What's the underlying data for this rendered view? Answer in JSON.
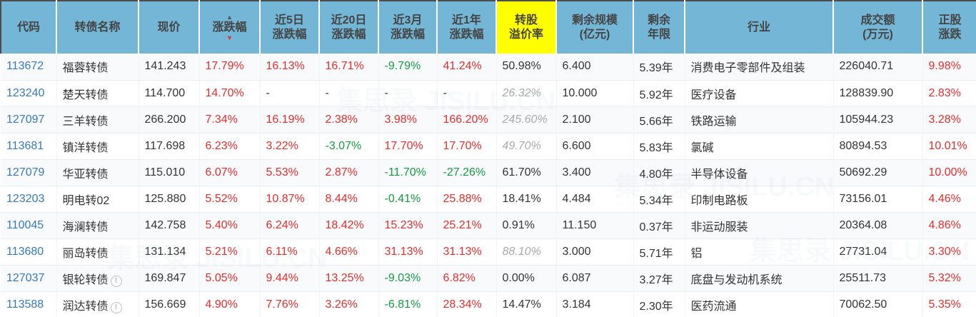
{
  "colors": {
    "header_bg": "#74b6d6",
    "header_text": "#444444",
    "highlight_bg": "#ffff00",
    "code_link": "#3579b9",
    "up_red": "#e62c2c",
    "down_green": "#149a43",
    "neutral": "#333333",
    "estimate_gray": "#aaaaaa",
    "sort_asc_inactive": "#555555",
    "sort_desc_active": "#e62c2c"
  },
  "watermark": {
    "text": "集思录",
    "subtext": "JISILU.CN"
  },
  "table": {
    "columns": [
      {
        "key": "code",
        "label": "代码",
        "type": "code"
      },
      {
        "key": "name",
        "label": "转债名称",
        "type": "name"
      },
      {
        "key": "price",
        "label": "现价",
        "type": "plain"
      },
      {
        "key": "change",
        "label": "涨跌幅",
        "type": "pct",
        "sorted": "desc"
      },
      {
        "key": "chg_5d",
        "label": "近5日\n涨跌幅",
        "type": "pct"
      },
      {
        "key": "chg_20d",
        "label": "近20日\n涨跌幅",
        "type": "pct"
      },
      {
        "key": "chg_3m",
        "label": "近3月\n涨跌幅",
        "type": "pct"
      },
      {
        "key": "chg_1y",
        "label": "近1年\n涨跌幅",
        "type": "pct"
      },
      {
        "key": "premium",
        "label": "转股\n溢价率",
        "type": "premium",
        "highlight": true
      },
      {
        "key": "size",
        "label": "剩余规模\n(亿元)",
        "type": "plain"
      },
      {
        "key": "years",
        "label": "剩余\n年限",
        "type": "plain"
      },
      {
        "key": "industry",
        "label": "行业",
        "type": "plain"
      },
      {
        "key": "turnover",
        "label": "成交额\n(万元)",
        "type": "plain"
      },
      {
        "key": "stock_change",
        "label": "正股\n涨跌",
        "type": "pct"
      }
    ],
    "rows": [
      {
        "code": "113672",
        "name": "福蓉转债",
        "notice": false,
        "price": "141.243",
        "change": "17.79%",
        "chg_5d": "16.13%",
        "chg_20d": "16.71%",
        "chg_3m": "-9.79%",
        "chg_1y": "41.24%",
        "premium": "50.98%",
        "premium_estimated": false,
        "size": "6.400",
        "years": "5.39年",
        "industry": "消费电子零部件及组装",
        "turnover": "226040.71",
        "stock_change": "9.98%"
      },
      {
        "code": "123240",
        "name": "楚天转债",
        "notice": false,
        "price": "114.700",
        "change": "14.70%",
        "chg_5d": "-",
        "chg_20d": "-",
        "chg_3m": "-",
        "chg_1y": "-",
        "premium": "26.32%",
        "premium_estimated": true,
        "size": "10.000",
        "years": "5.92年",
        "industry": "医疗设备",
        "turnover": "128839.90",
        "stock_change": "2.83%"
      },
      {
        "code": "127097",
        "name": "三羊转债",
        "notice": false,
        "price": "266.200",
        "change": "7.34%",
        "chg_5d": "16.19%",
        "chg_20d": "2.38%",
        "chg_3m": "3.98%",
        "chg_1y": "166.20%",
        "premium": "245.60%",
        "premium_estimated": true,
        "size": "2.100",
        "years": "5.66年",
        "industry": "铁路运输",
        "turnover": "105944.23",
        "stock_change": "3.28%"
      },
      {
        "code": "113681",
        "name": "镇洋转债",
        "notice": false,
        "price": "117.698",
        "change": "6.23%",
        "chg_5d": "3.22%",
        "chg_20d": "-3.07%",
        "chg_3m": "17.70%",
        "chg_1y": "17.70%",
        "premium": "49.70%",
        "premium_estimated": true,
        "size": "6.600",
        "years": "5.83年",
        "industry": "氯碱",
        "turnover": "80894.53",
        "stock_change": "10.01%"
      },
      {
        "code": "127079",
        "name": "华亚转债",
        "notice": false,
        "price": "115.010",
        "change": "6.07%",
        "chg_5d": "5.53%",
        "chg_20d": "2.87%",
        "chg_3m": "-11.70%",
        "chg_1y": "-27.26%",
        "premium": "61.70%",
        "premium_estimated": false,
        "size": "3.400",
        "years": "4.80年",
        "industry": "半导体设备",
        "turnover": "50692.29",
        "stock_change": "10.00%"
      },
      {
        "code": "123203",
        "name": "明电转02",
        "notice": false,
        "price": "125.880",
        "change": "5.52%",
        "chg_5d": "10.87%",
        "chg_20d": "8.44%",
        "chg_3m": "-0.41%",
        "chg_1y": "25.88%",
        "premium": "18.41%",
        "premium_estimated": false,
        "size": "4.484",
        "years": "5.34年",
        "industry": "印制电路板",
        "turnover": "73156.01",
        "stock_change": "4.46%"
      },
      {
        "code": "110045",
        "name": "海澜转债",
        "notice": false,
        "price": "142.758",
        "change": "5.40%",
        "chg_5d": "6.24%",
        "chg_20d": "18.42%",
        "chg_3m": "15.23%",
        "chg_1y": "25.21%",
        "premium": "0.91%",
        "premium_estimated": false,
        "size": "11.150",
        "years": "0.37年",
        "industry": "非运动服装",
        "turnover": "20364.08",
        "stock_change": "4.86%"
      },
      {
        "code": "113680",
        "name": "丽岛转债",
        "notice": false,
        "price": "131.134",
        "change": "5.21%",
        "chg_5d": "6.11%",
        "chg_20d": "4.66%",
        "chg_3m": "31.13%",
        "chg_1y": "31.13%",
        "premium": "88.10%",
        "premium_estimated": true,
        "size": "3.000",
        "years": "5.71年",
        "industry": "铝",
        "turnover": "27731.04",
        "stock_change": "3.30%"
      },
      {
        "code": "127037",
        "name": "银轮转债",
        "notice": true,
        "price": "169.847",
        "change": "5.05%",
        "chg_5d": "9.44%",
        "chg_20d": "13.25%",
        "chg_3m": "-9.03%",
        "chg_1y": "6.82%",
        "premium": "0.00%",
        "premium_estimated": false,
        "size": "6.087",
        "years": "3.27年",
        "industry": "底盘与发动机系统",
        "turnover": "25511.73",
        "stock_change": "5.32%"
      },
      {
        "code": "113588",
        "name": "润达转债",
        "notice": true,
        "price": "156.669",
        "change": "4.90%",
        "chg_5d": "7.76%",
        "chg_20d": "3.26%",
        "chg_3m": "-6.81%",
        "chg_1y": "28.34%",
        "premium": "14.47%",
        "premium_estimated": false,
        "size": "3.184",
        "years": "2.30年",
        "industry": "医药流通",
        "turnover": "70062.50",
        "stock_change": "5.35%"
      }
    ]
  }
}
